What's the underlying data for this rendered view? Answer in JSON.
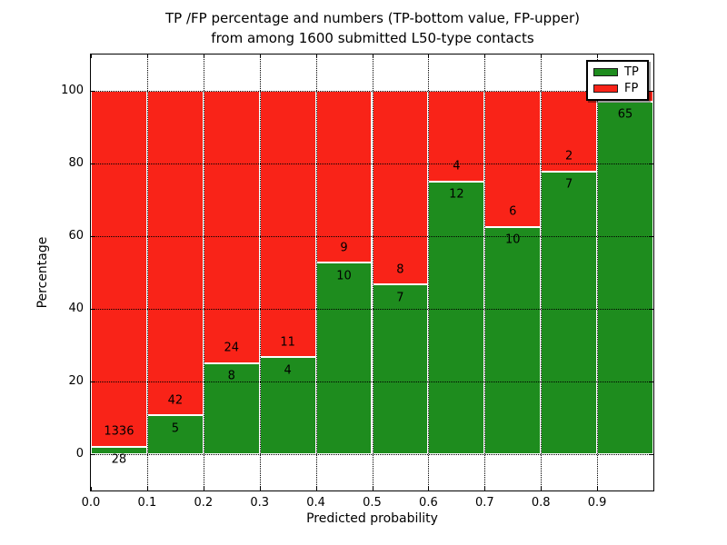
{
  "title": {
    "line1": "TP /FP percentage and numbers (TP-bottom value, FP-upper)",
    "line2": "from among 1600 submitted L50-type contacts"
  },
  "colors": {
    "tp_green": "#1e8c1e",
    "fp_red": "#f92318",
    "bar_edge": "#ffffff",
    "grid": "#000000",
    "background": "#ffffff"
  },
  "chart_data": {
    "type": "bar",
    "stacked": true,
    "normalized": "percent-of-bin",
    "title": "TP /FP percentage and numbers (TP-bottom value, FP-upper) from among 1600 submitted L50-type contacts",
    "xlabel": "Predicted probability",
    "ylabel": "Percentage",
    "xlim": [
      0.0,
      1.0
    ],
    "ylim": [
      -10,
      110
    ],
    "yticks": [
      0,
      20,
      40,
      60,
      80,
      100
    ],
    "xticks": [
      0.0,
      0.1,
      0.2,
      0.3,
      0.4,
      0.5,
      0.6,
      0.7,
      0.8,
      0.9
    ],
    "xtick_labels": [
      "0.0",
      "0.1",
      "0.2",
      "0.3",
      "0.4",
      "0.5",
      "0.6",
      "0.7",
      "0.8",
      "0.9"
    ],
    "grid": "dotted",
    "legend_position": "upper right",
    "total_contacts": 1600,
    "series": [
      {
        "name": "TP",
        "color": "#1e8c1e"
      },
      {
        "name": "FP",
        "color": "#f92318"
      }
    ],
    "bins": [
      {
        "x0": 0.0,
        "x1": 0.1,
        "tp": 28,
        "fp": 1336,
        "tp_label": "28",
        "fp_label": "1336"
      },
      {
        "x0": 0.1,
        "x1": 0.2,
        "tp": 5,
        "fp": 42,
        "tp_label": "5",
        "fp_label": "42"
      },
      {
        "x0": 0.2,
        "x1": 0.3,
        "tp": 8,
        "fp": 24,
        "tp_label": "8",
        "fp_label": "24"
      },
      {
        "x0": 0.3,
        "x1": 0.4,
        "tp": 4,
        "fp": 11,
        "tp_label": "4",
        "fp_label": "11"
      },
      {
        "x0": 0.4,
        "x1": 0.5,
        "tp": 10,
        "fp": 9,
        "tp_label": "10",
        "fp_label": "9"
      },
      {
        "x0": 0.5,
        "x1": 0.6,
        "tp": 7,
        "fp": 8,
        "tp_label": "7",
        "fp_label": "8"
      },
      {
        "x0": 0.6,
        "x1": 0.7,
        "tp": 12,
        "fp": 4,
        "tp_label": "12",
        "fp_label": "4"
      },
      {
        "x0": 0.7,
        "x1": 0.8,
        "tp": 10,
        "fp": 6,
        "tp_label": "10",
        "fp_label": "6"
      },
      {
        "x0": 0.8,
        "x1": 0.9,
        "tp": 7,
        "fp": 2,
        "tp_label": "7",
        "fp_label": "2"
      },
      {
        "x0": 0.9,
        "x1": 1.0,
        "tp": 65,
        "fp": 2,
        "tp_label": "65",
        "fp_label": ""
      }
    ]
  }
}
